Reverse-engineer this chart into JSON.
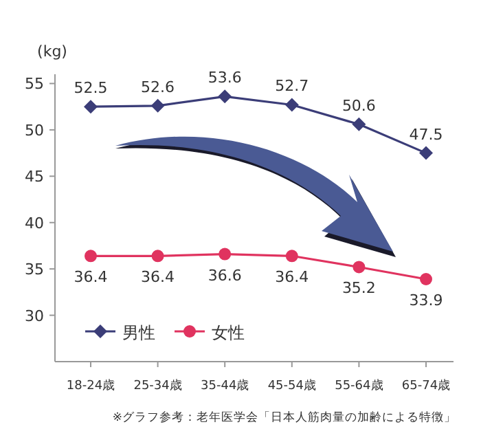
{
  "chart_data": {
    "type": "line",
    "ylabel": "(kg)",
    "categories": [
      "18-24歳",
      "25-34歳",
      "35-44歳",
      "45-54歳",
      "55-64歳",
      "65-74歳"
    ],
    "series": [
      {
        "name": "男性",
        "color": "#3b3d78",
        "marker": "diamond",
        "values": [
          52.5,
          52.6,
          53.6,
          52.7,
          50.6,
          47.5
        ]
      },
      {
        "name": "女性",
        "color": "#e0335f",
        "marker": "circle",
        "values": [
          36.4,
          36.4,
          36.6,
          36.4,
          35.2,
          33.9
        ]
      }
    ],
    "ylim": [
      25,
      56
    ],
    "yticks": [
      30,
      35,
      40,
      45,
      50,
      55
    ],
    "data_labels": true,
    "legend": "bottom left",
    "grid": false,
    "annotations": [
      "※グラフ参考：老年医学会「日本人筋肉量の加齢による特徴」"
    ]
  }
}
